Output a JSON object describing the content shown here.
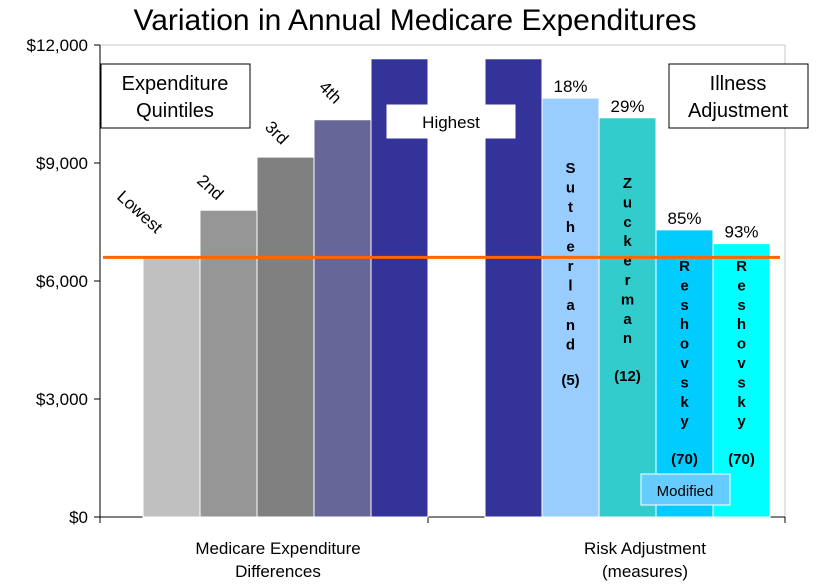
{
  "chart_data": {
    "type": "bar",
    "title": "Variation in Annual Medicare Expenditures",
    "ylim": [
      0,
      12000
    ],
    "yticks": [
      "$0",
      "$3,000",
      "$6,000",
      "$9,000",
      "$12,000"
    ],
    "ytick_values": [
      0,
      3000,
      6000,
      9000,
      12000
    ],
    "reference_line": 6600,
    "groups": [
      {
        "label_line1": "Medicare Expenditure",
        "label_line2": "Differences",
        "box_line1": "Expenditure",
        "box_line2": "Quintiles",
        "bars": [
          {
            "name": "Lowest",
            "value": 6600,
            "color": "#c0c0c0"
          },
          {
            "name": "2nd",
            "value": 7800,
            "color": "#969696"
          },
          {
            "name": "3rd",
            "value": 9150,
            "color": "#808080"
          },
          {
            "name": "4th",
            "value": 10100,
            "color": "#666699"
          },
          {
            "name": "Highest",
            "value": 11650,
            "color": "#333399"
          }
        ]
      },
      {
        "label_line1": "Risk Adjustment",
        "label_line2": "(measures)",
        "box_line1": "Illness",
        "box_line2": "Adjustment",
        "modified_label": "Modified",
        "bars": [
          {
            "name": "Highest",
            "value": 11650,
            "color": "#333399",
            "pct": "",
            "vertical": "",
            "measures": ""
          },
          {
            "name": "Sutherland",
            "value": 10650,
            "color": "#99ccff",
            "pct": "18%",
            "vertical": "Sutherland",
            "measures": "(5)"
          },
          {
            "name": "Zuckerman",
            "value": 10150,
            "color": "#33cccc",
            "pct": "29%",
            "vertical": "Zuckerman",
            "measures": "(12)"
          },
          {
            "name": "Reshovsky",
            "value": 7300,
            "color": "#00ccff",
            "pct": "85%",
            "vertical": "Reshovsky",
            "measures": "(70)"
          },
          {
            "name": "Reshovsky",
            "value": 6950,
            "color": "#00ffff",
            "pct": "93%",
            "vertical": "Reshovsky",
            "measures": "(70)"
          }
        ]
      }
    ]
  }
}
